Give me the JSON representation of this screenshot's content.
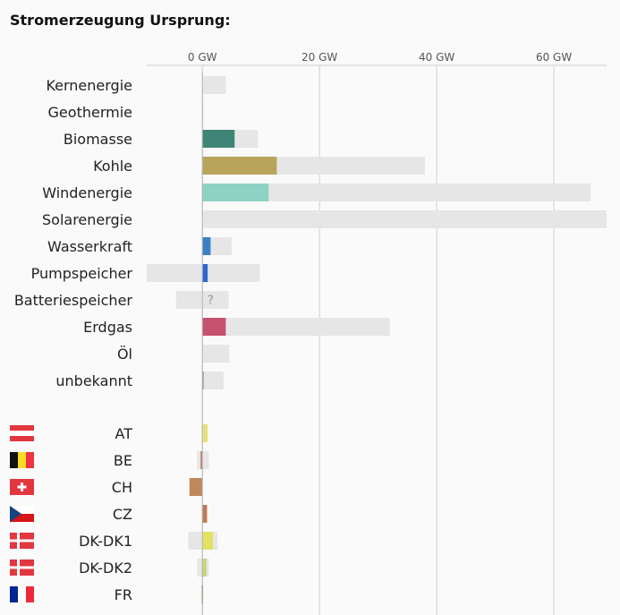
{
  "title": "Stromerzeugung Ursprung:",
  "chart_data": {
    "type": "bar",
    "orientation": "horizontal",
    "unit": "GW",
    "xlim": [
      -9.5,
      69
    ],
    "x_ticks": [
      0,
      20,
      40,
      60
    ],
    "x_tick_labels": [
      "0 GW",
      "20 GW",
      "40 GW",
      "60 GW"
    ],
    "grid": true,
    "series_note": "colored bar = current generation (GW); grey bar = capacity range (GW)",
    "sources": [
      {
        "label": "Kernenergie",
        "value": 0,
        "range": [
          0,
          4
        ],
        "color": "#cccccc"
      },
      {
        "label": "Geothermie",
        "value": 0,
        "range": [
          0,
          0.2
        ],
        "color": "#cccccc"
      },
      {
        "label": "Biomasse",
        "value": 5.5,
        "range": [
          0,
          9.5
        ],
        "color": "#3f8577"
      },
      {
        "label": "Kohle",
        "value": 12.7,
        "range": [
          0,
          38
        ],
        "color": "#b8a45b"
      },
      {
        "label": "Windenergie",
        "value": 11.3,
        "range": [
          0,
          66.3
        ],
        "color": "#8ed2c3"
      },
      {
        "label": "Solarenergie",
        "value": 0,
        "range": [
          0,
          69
        ],
        "color": "#cccccc"
      },
      {
        "label": "Wasserkraft",
        "value": 1.4,
        "range": [
          0,
          5
        ],
        "color": "#3c7fc6"
      },
      {
        "label": "Pumpspeicher",
        "value": 0.9,
        "range": [
          -9.5,
          9.8
        ],
        "color": "#2f66cf"
      },
      {
        "label": "Batteriespeicher",
        "value": 0,
        "range": [
          -4.5,
          4.5
        ],
        "color": "#cccccc",
        "marker": "?"
      },
      {
        "label": "Erdgas",
        "value": 4,
        "range": [
          0,
          32
        ],
        "color": "#c65270"
      },
      {
        "label": "Öl",
        "value": 0,
        "range": [
          0,
          4.6
        ],
        "color": "#cccccc"
      },
      {
        "label": "unbekannt",
        "value": 0.2,
        "range": [
          0,
          3.6
        ],
        "color": "#999999"
      }
    ],
    "countries": [
      {
        "label": "AT",
        "flag": "at-flag",
        "value": 0.9,
        "range": [
          0,
          0.9
        ],
        "color": "#e8e07a"
      },
      {
        "label": "BE",
        "flag": "be-flag",
        "value": -0.3,
        "range": [
          -0.9,
          1.1
        ],
        "color": "#b87a52"
      },
      {
        "label": "CH",
        "flag": "ch-flag",
        "value": -2.2,
        "range": [
          -2.2,
          0
        ],
        "color": "#c0875a"
      },
      {
        "label": "CZ",
        "flag": "cz-flag",
        "value": 0.8,
        "range": [
          0,
          0.8
        ],
        "color": "#c07a55"
      },
      {
        "label": "DK-DK1",
        "flag": "dk-flag",
        "value": 1.8,
        "range": [
          -2.4,
          2.6
        ],
        "color": "#e2e265"
      },
      {
        "label": "DK-DK2",
        "flag": "dk-flag",
        "value": 0.7,
        "range": [
          -0.9,
          1.1
        ],
        "color": "#c2d87a"
      },
      {
        "label": "FR",
        "flag": "fr-flag",
        "value": -0.1,
        "range": [
          -0.2,
          0
        ],
        "color": "#b87a52"
      }
    ]
  },
  "flags": {
    "at-flag": [
      "#e2373f",
      "#ffffff",
      "#e2373f"
    ],
    "be-flag": [
      "#111111",
      "#fdda24",
      "#ef3340"
    ],
    "ch-flag": [
      "#e2373f",
      "#ffffff"
    ],
    "cz-flag": [
      "#ffffff",
      "#d7141a",
      "#11457e"
    ],
    "dk-flag": [
      "#e2373f",
      "#ffffff"
    ],
    "fr-flag": [
      "#002395",
      "#ffffff",
      "#ed2939"
    ]
  }
}
